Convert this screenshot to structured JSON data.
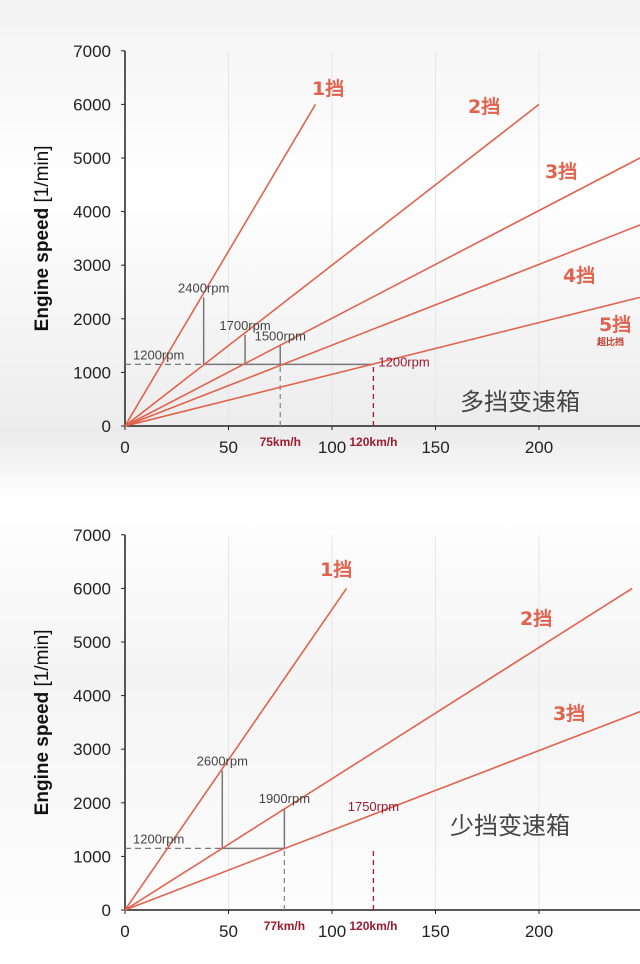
{
  "chart_data": [
    {
      "type": "line",
      "title": "多挡变速箱",
      "ylabel": "Engine speed [1/min]",
      "xlabel": "",
      "xlim": [
        0,
        250
      ],
      "ylim": [
        0,
        7000
      ],
      "xticks": [
        0,
        50,
        100,
        150,
        200
      ],
      "yticks": [
        0,
        1000,
        2000,
        3000,
        4000,
        5000,
        6000,
        7000
      ],
      "series": [
        {
          "name": "1挡",
          "sub": "",
          "x": [
            0,
            92
          ],
          "y": [
            0,
            6000
          ]
        },
        {
          "name": "2挡",
          "sub": "",
          "x": [
            0,
            200
          ],
          "y": [
            0,
            6000
          ]
        },
        {
          "name": "3挡",
          "sub": "",
          "x": [
            0,
            250
          ],
          "y": [
            0,
            5000
          ]
        },
        {
          "name": "4挡",
          "sub": "",
          "x": [
            0,
            250
          ],
          "y": [
            0,
            3750
          ]
        },
        {
          "name": "5挡",
          "sub": "超比挡",
          "x": [
            0,
            250
          ],
          "y": [
            0,
            2400
          ]
        }
      ],
      "annotations": [
        {
          "text": "1200rpm",
          "x": 0,
          "y": 1150,
          "style": "plain"
        },
        {
          "text": "2400rpm",
          "x": 38,
          "y": 2400,
          "style": "plain"
        },
        {
          "text": "1700rpm",
          "x": 58,
          "y": 1700,
          "style": "plain"
        },
        {
          "text": "1500rpm",
          "x": 75,
          "y": 1500,
          "style": "plain"
        },
        {
          "text": "1200rpm",
          "x": 120,
          "y": 1150,
          "style": "red"
        }
      ],
      "markers": [
        {
          "text": "75km/h",
          "x": 75
        },
        {
          "text": "120km/h",
          "x": 120
        }
      ],
      "guide": {
        "y": 1150,
        "x_start": 0,
        "x_end": 120,
        "dashed_until": 38,
        "steps": [
          38,
          58,
          75
        ],
        "step_tops": [
          2400,
          1700,
          1500
        ]
      }
    },
    {
      "type": "line",
      "title": "少挡变速箱",
      "ylabel": "Engine speed [1/min]",
      "xlabel": "",
      "xlim": [
        0,
        250
      ],
      "ylim": [
        0,
        7000
      ],
      "xticks": [
        0,
        50,
        100,
        150,
        200
      ],
      "yticks": [
        0,
        1000,
        2000,
        3000,
        4000,
        5000,
        6000,
        7000
      ],
      "series": [
        {
          "name": "1挡",
          "sub": "",
          "x": [
            0,
            107
          ],
          "y": [
            0,
            6000
          ]
        },
        {
          "name": "2挡",
          "sub": "",
          "x": [
            0,
            245
          ],
          "y": [
            0,
            6000
          ]
        },
        {
          "name": "3挡",
          "sub": "",
          "x": [
            0,
            250
          ],
          "y": [
            0,
            3700
          ]
        }
      ],
      "annotations": [
        {
          "text": "1200rpm",
          "x": 0,
          "y": 1150,
          "style": "plain"
        },
        {
          "text": "2600rpm",
          "x": 47,
          "y": 2600,
          "style": "plain"
        },
        {
          "text": "1900rpm",
          "x": 77,
          "y": 1900,
          "style": "plain"
        },
        {
          "text": "1750rpm",
          "x": 120,
          "y": 1750,
          "style": "red"
        }
      ],
      "markers": [
        {
          "text": "77km/h",
          "x": 77
        },
        {
          "text": "120km/h",
          "x": 120
        }
      ],
      "guide": {
        "y": 1150,
        "x_start": 0,
        "x_end": 77,
        "dashed_until": 47,
        "steps": [
          47,
          77
        ],
        "step_tops": [
          2600,
          1900
        ]
      }
    }
  ]
}
